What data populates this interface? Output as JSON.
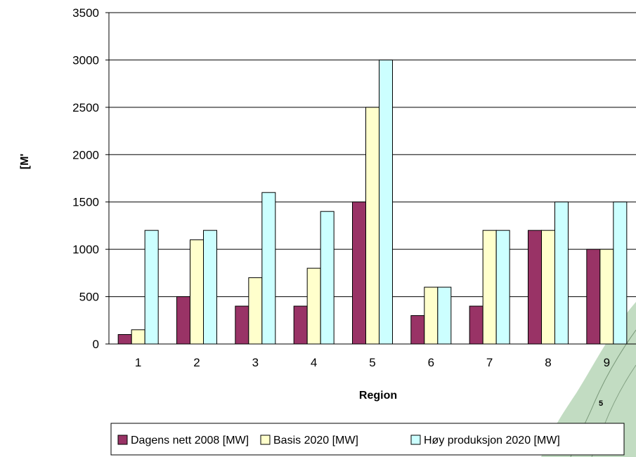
{
  "chart_data": {
    "type": "bar",
    "categories": [
      "1",
      "2",
      "3",
      "4",
      "5",
      "6",
      "7",
      "8",
      "9"
    ],
    "series": [
      {
        "name": "Dagens nett 2008 [MW]",
        "color": "#993366",
        "values": [
          100,
          500,
          400,
          400,
          1500,
          300,
          400,
          1200,
          1000
        ]
      },
      {
        "name": "Basis 2020 [MW]",
        "color": "#FFFFCC",
        "values": [
          150,
          1100,
          700,
          800,
          2500,
          600,
          1200,
          1200,
          1000
        ]
      },
      {
        "name": "Høy produksjon 2020 [MW]",
        "color": "#CCFFFF",
        "values": [
          1200,
          1200,
          1600,
          1400,
          3000,
          600,
          1200,
          1500,
          1500
        ]
      }
    ],
    "yticks": [
      "0",
      "500",
      "1000",
      "1500",
      "2000",
      "2500",
      "3000",
      "3500"
    ],
    "ylim": [
      0,
      3500
    ],
    "xlabel": "Region",
    "ylabel": "[M'",
    "grid": "horizontal",
    "legend_position": "bottom"
  },
  "map_fragment": {
    "label": "5",
    "color": "#8fbf8f"
  }
}
